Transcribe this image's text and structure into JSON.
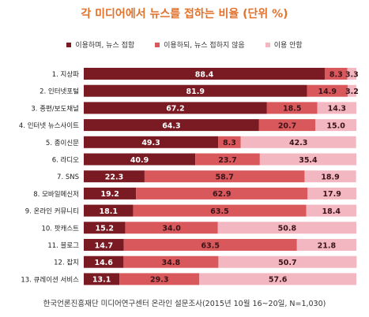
{
  "chart_data": {
    "type": "bar",
    "stacked": true,
    "orientation": "horizontal",
    "title": "각 미디어에서 뉴스를 접하는 비율 (단위 %)",
    "categories": [
      "1. 지상파",
      "2. 인터넷포털",
      "3. 종편/보도채널",
      "4. 인터넷 뉴스사이트",
      "5. 종이신문",
      "6. 라디오",
      "7. SNS",
      "8. 모바일메신저",
      "9. 온라인 커뮤니티",
      "10. 팟캐스트",
      "11. 블로그",
      "12. 잡지",
      "13. 큐레이션 서비스"
    ],
    "series": [
      {
        "name": "이용하며, 뉴스 접함",
        "color": "#7a1a22",
        "values": [
          88.4,
          81.9,
          67.2,
          64.3,
          49.3,
          40.9,
          22.3,
          19.2,
          18.1,
          15.2,
          14.7,
          14.6,
          13.1
        ]
      },
      {
        "name": "이용하되, 뉴스 접하지 않음",
        "color": "#d9585c",
        "values": [
          8.3,
          14.9,
          18.5,
          20.7,
          8.3,
          23.7,
          58.7,
          62.9,
          63.5,
          34.0,
          63.5,
          34.8,
          29.3
        ]
      },
      {
        "name": "이용 안함",
        "color": "#f2b7c0",
        "values": [
          3.3,
          3.2,
          14.3,
          15.0,
          42.3,
          35.4,
          18.9,
          17.9,
          18.4,
          50.8,
          21.8,
          50.7,
          57.6
        ]
      }
    ],
    "xlim": [
      0,
      100
    ],
    "legend_position": "top"
  },
  "footer": "한국언론진흥재단 미디어연구센터 온라인 설문조사(2015년 10월 16~20일, N=1,030)"
}
